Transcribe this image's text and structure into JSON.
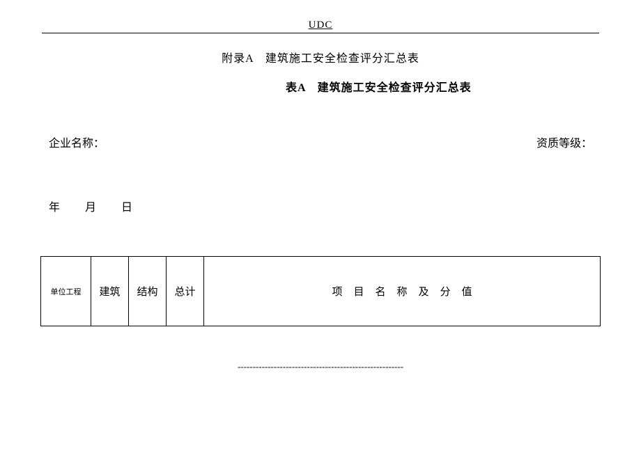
{
  "header": {
    "udc": "UDC"
  },
  "titles": {
    "appendix": "附录A　建筑施工安全检查评分汇总表",
    "tableTitle": "表A　建筑施工安全检查评分汇总表"
  },
  "labels": {
    "companyName": "企业名称：",
    "qualificationGrade": "资质等级："
  },
  "date": {
    "year": "年",
    "month": "月",
    "day": "日"
  },
  "table": {
    "headers": {
      "unitProject": "单位工程",
      "building": "建筑",
      "structure": "结构",
      "total": "总计",
      "projectNameValue": "项目名称及分值"
    }
  },
  "footer": {
    "dashes": "-------------------------------------------------------"
  }
}
